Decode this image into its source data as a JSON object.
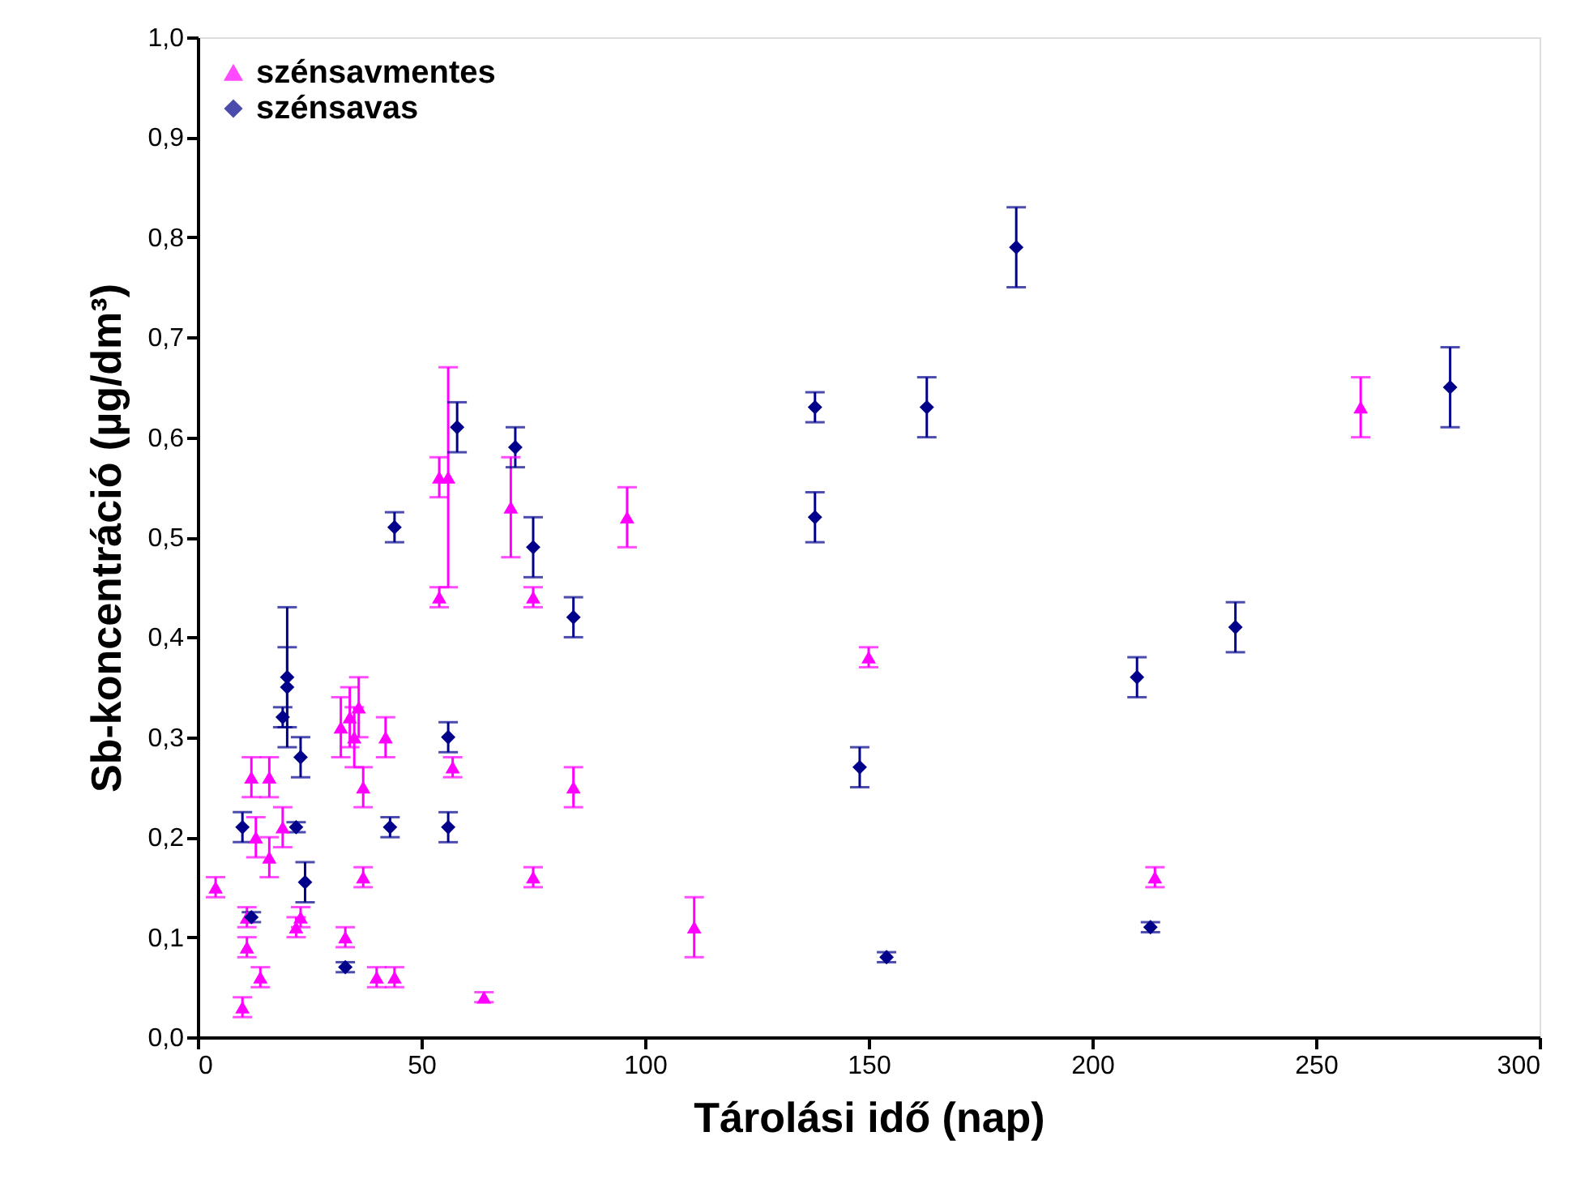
{
  "chart_data": {
    "type": "scatter",
    "xlabel": "Tárolási idő (nap)",
    "ylabel": "Sb-koncentráció (µg/dm³)",
    "xlim": [
      0,
      300
    ],
    "xticks": [
      0,
      50,
      100,
      150,
      200,
      250,
      300
    ],
    "ylim": [
      0,
      1.0
    ],
    "yticks": [
      {
        "value": 0,
        "label": "0,0"
      },
      {
        "value": 0.1,
        "label": "0,1"
      },
      {
        "value": 0.2,
        "label": "0,2"
      },
      {
        "value": 0.3,
        "label": "0,3"
      },
      {
        "value": 0.4,
        "label": "0,4"
      },
      {
        "value": 0.5,
        "label": "0,5"
      },
      {
        "value": 0.6,
        "label": "0,6"
      },
      {
        "value": 0.7,
        "label": "0,7"
      },
      {
        "value": 0.8,
        "label": "0,8"
      },
      {
        "value": 0.9,
        "label": "0,9"
      },
      {
        "value": 1.0,
        "label": "1,0"
      }
    ],
    "grid": false,
    "legend": "top left",
    "series": [
      {
        "name": "szénsavmentes",
        "color": "#ff00ff",
        "marker": "triangle",
        "x": [
          4,
          10,
          11,
          11,
          12,
          13,
          14,
          16,
          16,
          19,
          22,
          23,
          32,
          33,
          34,
          35,
          36,
          37,
          37,
          40,
          42,
          44,
          54,
          54,
          56,
          57,
          64,
          70,
          75,
          75,
          84,
          96,
          111,
          150,
          214,
          260
        ],
        "values": [
          0.15,
          0.03,
          0.09,
          0.12,
          0.26,
          0.2,
          0.06,
          0.18,
          0.26,
          0.21,
          0.11,
          0.12,
          0.31,
          0.1,
          0.32,
          0.3,
          0.33,
          0.25,
          0.16,
          0.06,
          0.3,
          0.06,
          0.44,
          0.56,
          0.56,
          0.27,
          0.04,
          0.53,
          0.44,
          0.16,
          0.25,
          0.52,
          0.11,
          0.38,
          0.16,
          0.63
        ],
        "errors": [
          0.01,
          0.01,
          0.01,
          0.01,
          0.02,
          0.02,
          0.01,
          0.02,
          0.02,
          0.02,
          0.01,
          0.01,
          0.03,
          0.01,
          0.03,
          0.03,
          0.03,
          0.02,
          0.01,
          0.01,
          0.02,
          0.01,
          0.01,
          0.02,
          0.11,
          0.01,
          0.005,
          0.05,
          0.01,
          0.01,
          0.02,
          0.03,
          0.03,
          0.01,
          0.01,
          0.03
        ]
      },
      {
        "name": "szénsavas",
        "color": "#00008b",
        "marker": "diamond",
        "x": [
          10,
          12,
          19,
          20,
          20,
          22,
          23,
          24,
          33,
          43,
          44,
          56,
          56,
          58,
          71,
          75,
          84,
          138,
          138,
          148,
          154,
          163,
          183,
          210,
          213,
          232,
          280
        ],
        "values": [
          0.21,
          0.12,
          0.32,
          0.35,
          0.36,
          0.21,
          0.28,
          0.155,
          0.07,
          0.21,
          0.51,
          0.3,
          0.21,
          0.61,
          0.59,
          0.49,
          0.42,
          0.63,
          0.52,
          0.27,
          0.08,
          0.63,
          0.79,
          0.36,
          0.11,
          0.41,
          0.65
        ],
        "errors": [
          0.015,
          0.005,
          0.01,
          0.04,
          0.07,
          0.005,
          0.02,
          0.02,
          0.005,
          0.01,
          0.015,
          0.015,
          0.015,
          0.025,
          0.02,
          0.03,
          0.02,
          0.015,
          0.025,
          0.02,
          0.005,
          0.03,
          0.04,
          0.02,
          0.005,
          0.025,
          0.04
        ]
      }
    ]
  }
}
